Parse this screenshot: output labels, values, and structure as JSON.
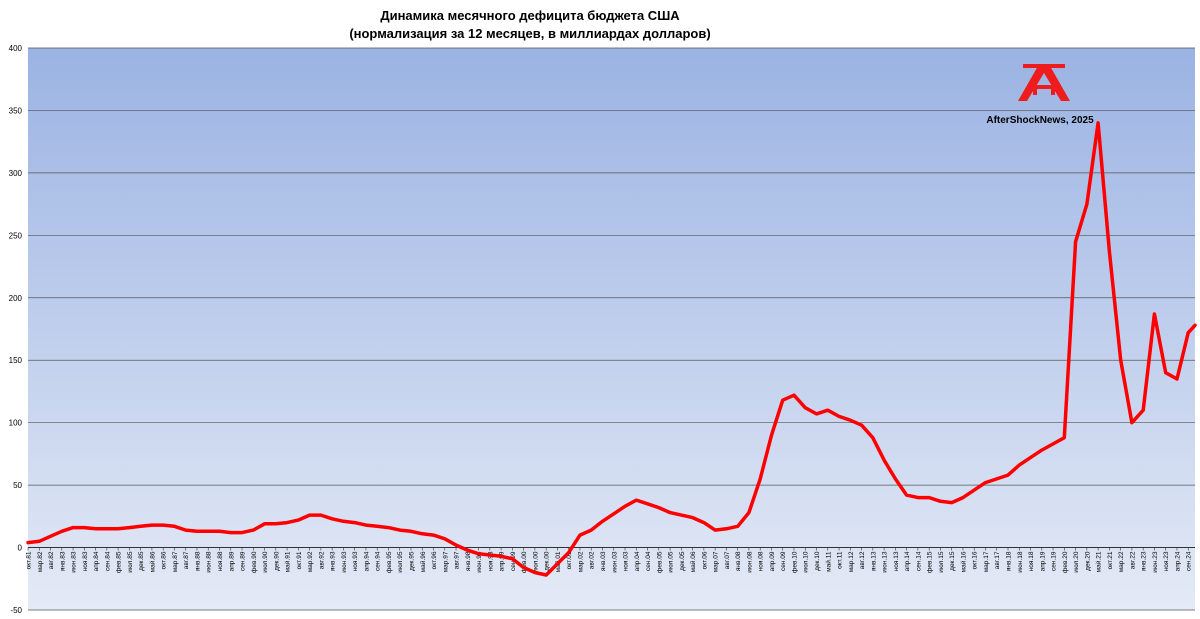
{
  "chart_data": {
    "type": "line",
    "title": "Динамика месячного дефицита бюджета США",
    "subtitle": "(нормализация за 12 месяцев, в миллиардах долларов)",
    "xlabel": "",
    "ylabel": "",
    "ylim": [
      -50,
      400
    ],
    "yticks": [
      -50,
      0,
      50,
      100,
      150,
      200,
      250,
      300,
      350,
      400
    ],
    "grid": true,
    "legend": "none",
    "x_start": "окт.81",
    "x_end": "дек.24",
    "xtick_labels": [
      "окт.81",
      "мар.82",
      "авг.82",
      "янв.83",
      "июн.83",
      "ноя.83",
      "апр.84",
      "сен.84",
      "фев.85",
      "июл.85",
      "дек.85",
      "май.86",
      "окт.86",
      "мар.87",
      "авг.87",
      "янв.88",
      "июн.88",
      "ноя.88",
      "апр.89",
      "сен.89",
      "фев.90",
      "июл.90",
      "дек.90",
      "май.91",
      "окт.91",
      "мар.92",
      "авг.92",
      "янв.93",
      "июн.93",
      "ноя.93",
      "апр.94",
      "сен.94",
      "фев.95",
      "июл.95",
      "дек.95",
      "май.96",
      "окт.96",
      "мар.97",
      "авг.97",
      "янв.98",
      "июн.98",
      "ноя.98",
      "апр.99",
      "сен.99",
      "фев.00",
      "июл.00",
      "дек.00",
      "май.01",
      "окт.01",
      "мар.02",
      "авг.02",
      "янв.03",
      "июн.03",
      "ноя.03",
      "апр.04",
      "сен.04",
      "фев.05",
      "июл.05",
      "дек.05",
      "май.06",
      "окт.06",
      "мар.07",
      "авг.07",
      "янв.08",
      "июн.08",
      "ноя.08",
      "апр.09",
      "сен.09",
      "фев.10",
      "июл.10",
      "дек.10",
      "май.11",
      "окт.11",
      "мар.12",
      "авг.12",
      "янв.13",
      "июн.13",
      "ноя.13",
      "апр.14",
      "сен.14",
      "фев.15",
      "июл.15",
      "дек.15",
      "май.16",
      "окт.16",
      "мар.17",
      "авг.17",
      "янв.18",
      "июн.18",
      "ноя.18",
      "апр.19",
      "сен.19",
      "фев.20",
      "июл.20",
      "дек.20",
      "май.21",
      "окт.21",
      "мар.22",
      "авг.22",
      "янв.23",
      "июн.23",
      "ноя.23",
      "апр.24",
      "сен.24"
    ],
    "series": [
      {
        "color": "#ff0000",
        "points": [
          [
            "окт.81",
            4
          ],
          [
            "мар.82",
            5
          ],
          [
            "авг.82",
            9
          ],
          [
            "янв.83",
            13
          ],
          [
            "июн.83",
            16
          ],
          [
            "ноя.83",
            16
          ],
          [
            "апр.84",
            15
          ],
          [
            "сен.84",
            15
          ],
          [
            "фев.85",
            15
          ],
          [
            "июл.85",
            16
          ],
          [
            "дек.85",
            17
          ],
          [
            "май.86",
            18
          ],
          [
            "окт.86",
            18
          ],
          [
            "мар.87",
            17
          ],
          [
            "авг.87",
            14
          ],
          [
            "янв.88",
            13
          ],
          [
            "июн.88",
            13
          ],
          [
            "ноя.88",
            13
          ],
          [
            "апр.89",
            12
          ],
          [
            "сен.89",
            12
          ],
          [
            "фев.90",
            14
          ],
          [
            "июл.90",
            19
          ],
          [
            "дек.90",
            19
          ],
          [
            "май.91",
            20
          ],
          [
            "окт.91",
            22
          ],
          [
            "мар.92",
            26
          ],
          [
            "авг.92",
            26
          ],
          [
            "янв.93",
            23
          ],
          [
            "июн.93",
            21
          ],
          [
            "ноя.93",
            20
          ],
          [
            "апр.94",
            18
          ],
          [
            "сен.94",
            17
          ],
          [
            "фев.95",
            16
          ],
          [
            "июл.95",
            14
          ],
          [
            "дек.95",
            13
          ],
          [
            "май.96",
            11
          ],
          [
            "окт.96",
            10
          ],
          [
            "мар.97",
            7
          ],
          [
            "авг.97",
            2
          ],
          [
            "янв.98",
            -2
          ],
          [
            "июн.98",
            -5
          ],
          [
            "ноя.98",
            -6
          ],
          [
            "апр.99",
            -7
          ],
          [
            "сен.99",
            -9
          ],
          [
            "фев.00",
            -16
          ],
          [
            "июл.00",
            -20
          ],
          [
            "дек.00",
            -22
          ],
          [
            "май.01",
            -13
          ],
          [
            "окт.01",
            -4
          ],
          [
            "мар.02",
            10
          ],
          [
            "авг.02",
            14
          ],
          [
            "янв.03",
            21
          ],
          [
            "июн.03",
            27
          ],
          [
            "ноя.03",
            33
          ],
          [
            "апр.04",
            38
          ],
          [
            "сен.04",
            35
          ],
          [
            "фев.05",
            32
          ],
          [
            "июл.05",
            28
          ],
          [
            "дек.05",
            26
          ],
          [
            "май.06",
            24
          ],
          [
            "окт.06",
            20
          ],
          [
            "мар.07",
            14
          ],
          [
            "авг.07",
            15
          ],
          [
            "янв.08",
            17
          ],
          [
            "июн.08",
            28
          ],
          [
            "ноя.08",
            55
          ],
          [
            "апр.09",
            90
          ],
          [
            "сен.09",
            118
          ],
          [
            "фев.10",
            122
          ],
          [
            "июл.10",
            112
          ],
          [
            "дек.10",
            107
          ],
          [
            "май.11",
            110
          ],
          [
            "окт.11",
            105
          ],
          [
            "мар.12",
            102
          ],
          [
            "авг.12",
            98
          ],
          [
            "янв.13",
            88
          ],
          [
            "июн.13",
            70
          ],
          [
            "ноя.13",
            55
          ],
          [
            "апр.14",
            42
          ],
          [
            "сен.14",
            40
          ],
          [
            "фев.15",
            40
          ],
          [
            "июл.15",
            37
          ],
          [
            "дек.15",
            36
          ],
          [
            "май.16",
            40
          ],
          [
            "окт.16",
            46
          ],
          [
            "мар.17",
            52
          ],
          [
            "авг.17",
            55
          ],
          [
            "янв.18",
            58
          ],
          [
            "июн.18",
            66
          ],
          [
            "ноя.18",
            72
          ],
          [
            "апр.19",
            78
          ],
          [
            "сен.19",
            83
          ],
          [
            "фев.20",
            88
          ],
          [
            "июл.20",
            245
          ],
          [
            "дек.20",
            275
          ],
          [
            "май.21",
            340
          ],
          [
            "окт.21",
            237
          ],
          [
            "мар.22",
            150
          ],
          [
            "авг.22",
            100
          ],
          [
            "янв.23",
            110
          ],
          [
            "июн.23",
            187
          ],
          [
            "ноя.23",
            140
          ],
          [
            "апр.24",
            135
          ],
          [
            "сен.24",
            172
          ],
          [
            "дек.24",
            178
          ]
        ]
      }
    ]
  },
  "credit": "AfterShockNews, 2025",
  "colors": {
    "plot_top": "#9bb3e3",
    "plot_bottom": "#e4eaf6",
    "gridline": "#555555",
    "line": "#ff0000",
    "logo": "#ee1c1c"
  },
  "logo_icon": "aftershocknews-logo"
}
